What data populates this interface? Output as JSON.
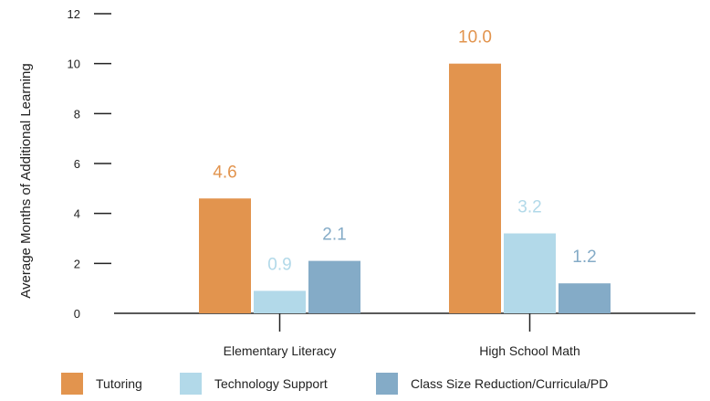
{
  "chart_data": {
    "type": "bar",
    "ylabel": "Average Months of Additional Learning",
    "xlabel": "",
    "ylim": [
      0,
      12
    ],
    "yticks": [
      "0",
      "2",
      "4",
      "6",
      "8",
      "10",
      "12"
    ],
    "grid": false,
    "legend_position": "bottom",
    "categories": [
      "Elementary Literacy",
      "High School Math"
    ],
    "series": [
      {
        "name": "Tutoring",
        "color": "#e2944e",
        "values": [
          4.6,
          10.0
        ],
        "labels": [
          "4.6",
          "10.0"
        ]
      },
      {
        "name": "Technology Support",
        "color": "#b2d9e9",
        "values": [
          0.9,
          3.2
        ],
        "labels": [
          "0.9",
          "3.2"
        ]
      },
      {
        "name": "Class Size Reduction/Curricula/PD",
        "color": "#84abc7",
        "values": [
          2.1,
          1.2
        ],
        "labels": [
          "2.1",
          "1.2"
        ]
      }
    ]
  }
}
